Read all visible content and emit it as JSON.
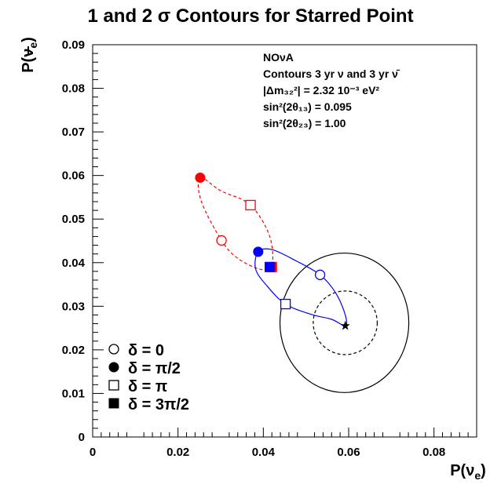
{
  "chart_data": {
    "type": "scatter",
    "title": "1 and 2 σ Contours for Starred Point",
    "xlabel": "P(ν_e)",
    "ylabel": "P(ν̄_e)",
    "xlim": [
      0,
      0.09
    ],
    "ylim": [
      0,
      0.09
    ],
    "x_ticks": [
      "0",
      "0.02",
      "0.04",
      "0.06",
      "0.08"
    ],
    "y_ticks": [
      "0",
      "0.01",
      "0.02",
      "0.03",
      "0.04",
      "0.05",
      "0.06",
      "0.07",
      "0.08",
      "0.09"
    ],
    "info_lines": [
      "NOνA",
      "Contours 3 yr ν and 3 yr ν̄",
      "|Δm₃₂²| = 2.32 10⁻³ eV²",
      "sin²(2θ₁₃) = 0.095",
      "sin²(2θ₂₃) = 1.00"
    ],
    "starred_point": {
      "x": 0.0592,
      "y": 0.0255
    },
    "contours": [
      {
        "name": "1 sigma",
        "style": "dashed",
        "color": "#000000",
        "center": [
          0.0592,
          0.0262
        ],
        "radius": [
          0.0075,
          0.0073
        ]
      },
      {
        "name": "2 sigma",
        "style": "solid",
        "color": "#000000",
        "center": [
          0.059,
          0.0262
        ],
        "radius": [
          0.0151,
          0.016
        ]
      }
    ],
    "series": [
      {
        "color": "#ff0000",
        "style": "dashed",
        "points": [
          [
            0.0252,
            0.0595
          ],
          [
            0.03,
            0.0565
          ],
          [
            0.037,
            0.0532
          ],
          [
            0.0415,
            0.046
          ],
          [
            0.042,
            0.039
          ],
          [
            0.0392,
            0.0385
          ],
          [
            0.034,
            0.041
          ],
          [
            0.0302,
            0.0451
          ],
          [
            0.0255,
            0.054
          ],
          [
            0.0252,
            0.0595
          ]
        ],
        "markers": [
          {
            "delta": "0",
            "x": 0.0302,
            "y": 0.0451
          },
          {
            "delta": "π/2",
            "x": 0.0252,
            "y": 0.0595
          },
          {
            "delta": "π",
            "x": 0.037,
            "y": 0.0532
          },
          {
            "delta": "3π/2",
            "x": 0.042,
            "y": 0.039
          }
        ]
      },
      {
        "color": "#0000ff",
        "style": "solid",
        "points": [
          [
            0.0388,
            0.0425
          ],
          [
            0.042,
            0.043
          ],
          [
            0.0475,
            0.0405
          ],
          [
            0.0533,
            0.0372
          ],
          [
            0.057,
            0.033
          ],
          [
            0.0592,
            0.028
          ],
          [
            0.0592,
            0.0255
          ],
          [
            0.056,
            0.027
          ],
          [
            0.051,
            0.0282
          ],
          [
            0.0452,
            0.0305
          ],
          [
            0.041,
            0.0345
          ],
          [
            0.0382,
            0.0385
          ],
          [
            0.0388,
            0.0425
          ]
        ],
        "markers": [
          {
            "delta": "0",
            "x": 0.0533,
            "y": 0.0372
          },
          {
            "delta": "π/2",
            "x": 0.0388,
            "y": 0.0425
          },
          {
            "delta": "π",
            "x": 0.0452,
            "y": 0.0305
          },
          {
            "delta": "3π/2",
            "x": 0.0415,
            "y": 0.039
          }
        ]
      }
    ],
    "legend": [
      {
        "symbol": "open-circle",
        "label": "δ = 0"
      },
      {
        "symbol": "filled-circle",
        "label": "δ = π/2"
      },
      {
        "symbol": "open-square",
        "label": "δ = π"
      },
      {
        "symbol": "filled-square",
        "label": "δ = 3π/2"
      }
    ]
  }
}
